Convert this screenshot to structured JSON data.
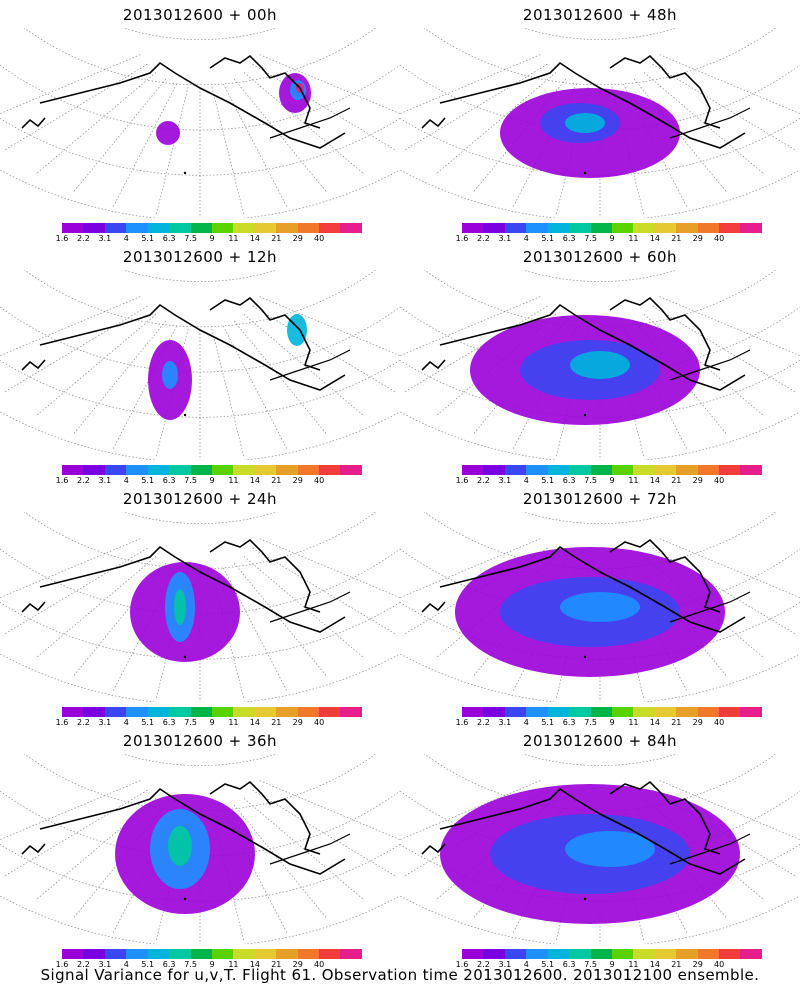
{
  "panels": [
    {
      "title": "2013012600  + 00h"
    },
    {
      "title": "2013012600  + 48h"
    },
    {
      "title": "2013012600  + 12h"
    },
    {
      "title": "2013012600  + 60h"
    },
    {
      "title": "2013012600  + 24h"
    },
    {
      "title": "2013012600  + 72h"
    },
    {
      "title": "2013012600  + 36h"
    },
    {
      "title": "2013012600  + 84h"
    }
  ],
  "colorbar": {
    "labels": [
      "1.6",
      "2.2",
      "3.1",
      "4",
      "5.1",
      "6.3",
      "7.5",
      "9",
      "11",
      "14",
      "21",
      "29",
      "40"
    ],
    "colors": [
      "#9a00d8",
      "#7a00e0",
      "#3c46f0",
      "#1e90ff",
      "#00b4dc",
      "#00c8a0",
      "#00b448",
      "#5ad200",
      "#c8dc28",
      "#e6c832",
      "#e6a028",
      "#f07828",
      "#f03c3c",
      "#e61e8c"
    ]
  },
  "footer": "Signal Variance for u,v,T. Flight 61. Observation time 2013012600. 2013012100 ensemble."
}
